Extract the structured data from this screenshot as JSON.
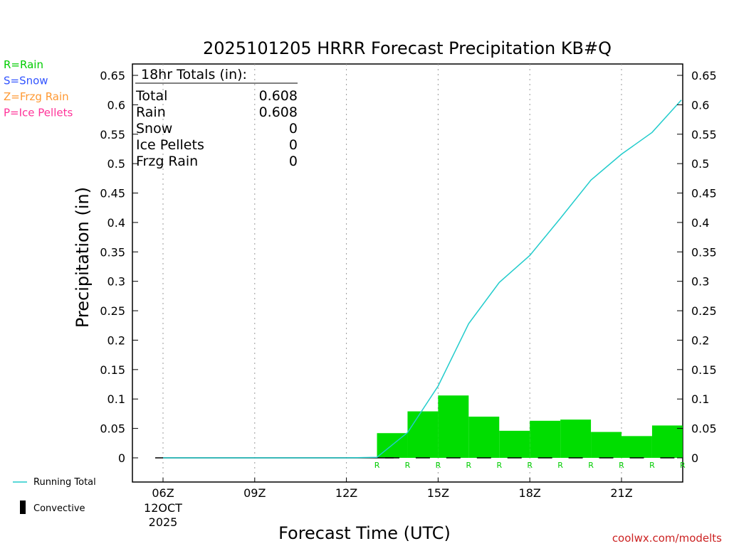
{
  "chart_data": {
    "type": "bar",
    "title": "2025101205 HRRR Forecast Precipitation KB#Q",
    "xlabel": "Forecast Time (UTC)",
    "ylabel": "Precipitation (in)",
    "ylim": [
      0,
      0.65
    ],
    "y_ticks": [
      "0",
      "0.05",
      "0.1",
      "0.15",
      "0.2",
      "0.25",
      "0.3",
      "0.35",
      "0.4",
      "0.45",
      "0.5",
      "0.55",
      "0.6",
      "0.65"
    ],
    "x_ticks": [
      {
        "hour": 6,
        "label": "06Z",
        "sub1": "12OCT",
        "sub2": "2025"
      },
      {
        "hour": 9,
        "label": "09Z"
      },
      {
        "hour": 12,
        "label": "12Z"
      },
      {
        "hour": 15,
        "label": "15Z"
      },
      {
        "hour": 18,
        "label": "18Z"
      },
      {
        "hour": 21,
        "label": "21Z"
      }
    ],
    "hourly_hours": [
      13,
      14,
      15,
      16,
      17,
      18,
      19,
      20,
      21,
      22,
      23
    ],
    "hourly_values": [
      0.0,
      0.042,
      0.079,
      0.106,
      0.07,
      0.046,
      0.063,
      0.065,
      0.044,
      0.037,
      0.055
    ],
    "ptype_labels": [
      "R",
      "R",
      "R",
      "R",
      "R",
      "R",
      "R",
      "R",
      "R",
      "R",
      "R"
    ],
    "running_total": {
      "hours": [
        6,
        7,
        8,
        9,
        10,
        11,
        12,
        13,
        14,
        15,
        16,
        17,
        18,
        19,
        20,
        21,
        22,
        23
      ],
      "values": [
        0,
        0,
        0,
        0,
        0,
        0,
        0,
        0.001,
        0.043,
        0.122,
        0.228,
        0.298,
        0.344,
        0.407,
        0.472,
        0.516,
        0.553,
        0.608
      ]
    },
    "totals_box": {
      "header": "18hr Totals (in):",
      "rows": [
        {
          "label": "Total",
          "value": "0.608"
        },
        {
          "label": "Rain",
          "value": "0.608"
        },
        {
          "label": "Snow",
          "value": "0"
        },
        {
          "label": "Ice Pellets",
          "value": "0"
        },
        {
          "label": "Frzg Rain",
          "value": "0"
        }
      ]
    },
    "ptype_legend": [
      {
        "text": "R=Rain",
        "color": "#00cc00"
      },
      {
        "text": "S=Snow",
        "color": "#3355ff"
      },
      {
        "text": "Z=Frzg Rain",
        "color": "#ff9933"
      },
      {
        "text": "P=Ice Pellets",
        "color": "#ff3399"
      }
    ],
    "series_legend": {
      "running_total": "Running Total",
      "convective": "Convective"
    },
    "credit": "coolwx.com/modelts",
    "colors": {
      "bars": "#00dd00",
      "line": "#22cccc",
      "credit": "#cc2222",
      "grid": "#999999"
    }
  }
}
